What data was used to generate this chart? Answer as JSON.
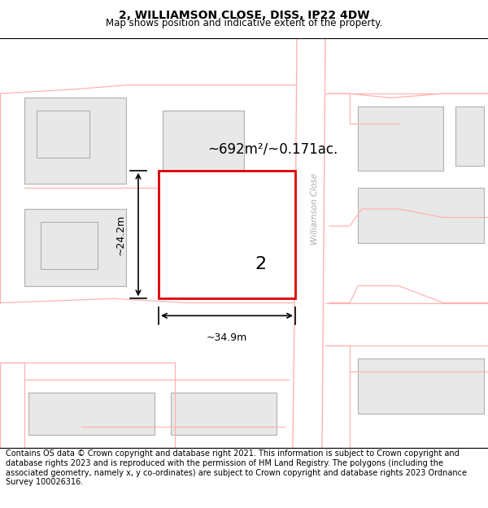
{
  "title": "2, WILLIAMSON CLOSE, DISS, IP22 4DW",
  "subtitle": "Map shows position and indicative extent of the property.",
  "footer": "Contains OS data © Crown copyright and database right 2021. This information is subject to Crown copyright and database rights 2023 and is reproduced with the permission of HM Land Registry. The polygons (including the associated geometry, namely x, y co-ordinates) are subject to Crown copyright and database rights 2023 Ordnance Survey 100026316.",
  "area_text": "~692m²/~0.171ac.",
  "label_2": "2",
  "dim_width": "~34.9m",
  "dim_height": "~24.2m",
  "street_label": "Williamson Close",
  "road_line_color": "#ffb3b3",
  "building_fill": "#e8e8e8",
  "building_edge": "#b0b0b0",
  "plot_edge": "#dd0000",
  "title_fontsize": 10,
  "subtitle_fontsize": 8.5,
  "footer_fontsize": 7.0
}
